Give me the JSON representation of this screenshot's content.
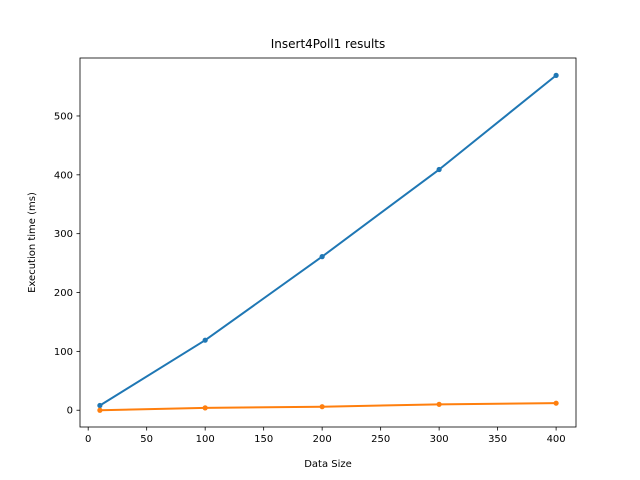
{
  "chart_data": {
    "type": "line",
    "title": "Insert4Poll1 results",
    "xlabel": "Data Size",
    "ylabel": "Execution time (ms)",
    "xlim": [
      -7,
      417
    ],
    "ylim": [
      -28.5,
      598.5
    ],
    "xticks": [
      0,
      50,
      100,
      150,
      200,
      250,
      300,
      350,
      400
    ],
    "yticks": [
      0,
      100,
      200,
      300,
      400,
      500
    ],
    "grid": false,
    "legend": "none",
    "series": [
      {
        "color": "#1f77b4",
        "x": [
          10,
          100,
          200,
          300,
          400
        ],
        "y": [
          8,
          119,
          261,
          409,
          569
        ]
      },
      {
        "color": "#ff7f0e",
        "x": [
          10,
          100,
          200,
          300,
          400
        ],
        "y": [
          0,
          4,
          6,
          10,
          12
        ]
      }
    ]
  }
}
